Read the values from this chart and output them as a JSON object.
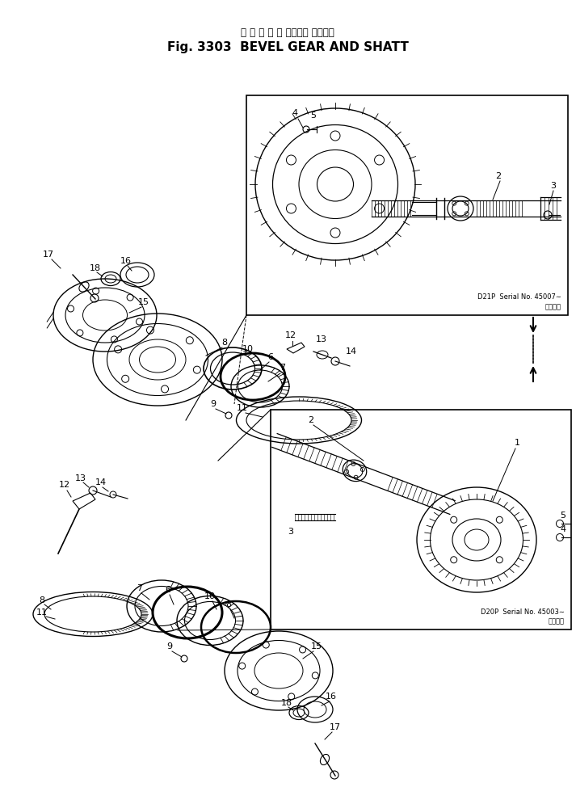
{
  "title_japanese": "ベ ベ ル ギ ヤ ーおよび シャフト",
  "title_english": "Fig. 3303  BEVEL GEAR AND SHATT",
  "bg_color": "#ffffff",
  "box1_label_ja": "適用番号",
  "box1_label": "D21P  Serial No. 45007∼",
  "box2_label_ja": "適用番号",
  "box2_label": "D20P  Serial No. 45003∼",
  "fig_width": 7.13,
  "fig_height": 9.9,
  "dpi": 100
}
